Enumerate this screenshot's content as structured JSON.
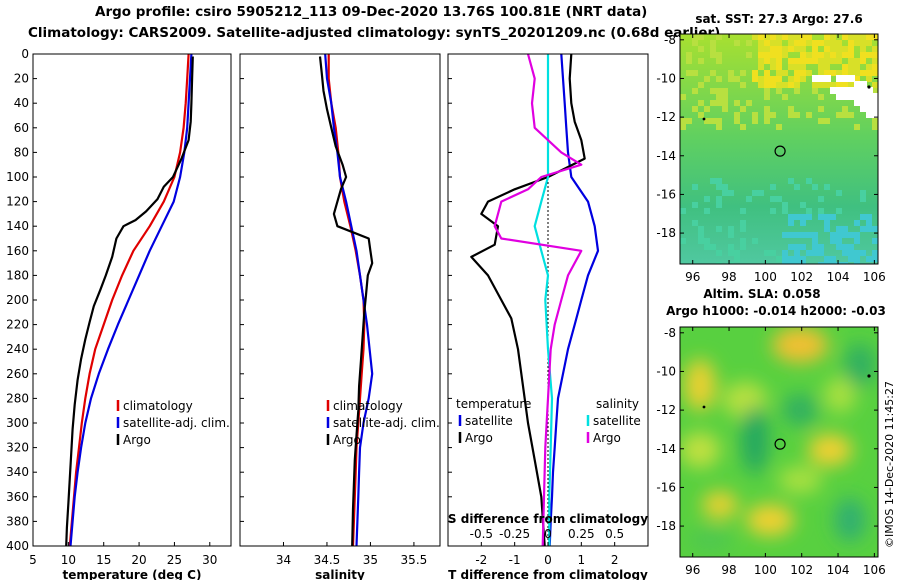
{
  "header": {
    "line1": "Argo profile: csiro 5905212_113 09-Dec-2020 13.76S 100.81E (NRT data)",
    "line2": "Climatology: CARS2009. Satellite-adjusted climatology: synTS_20201209.nc (0.68d earlier)"
  },
  "chart_data": [
    {
      "id": "temperature",
      "type": "line",
      "xlabel": "temperature (deg C)",
      "ylabel": "",
      "xlim": [
        5,
        33
      ],
      "ylim": [
        400,
        0
      ],
      "xticks": [
        "5",
        "10",
        "15",
        "20",
        "25",
        "30"
      ],
      "xtick_values": [
        5,
        10,
        15,
        20,
        25,
        30
      ],
      "yticks": [
        "0",
        "20",
        "40",
        "60",
        "80",
        "100",
        "120",
        "140",
        "160",
        "180",
        "200",
        "220",
        "240",
        "260",
        "280",
        "300",
        "320",
        "340",
        "360",
        "380",
        "400"
      ],
      "legend": [
        "climatology",
        "satellite-adj. clim.",
        "Argo"
      ],
      "series": [
        {
          "name": "climatology",
          "color": "#e00000",
          "points": [
            [
              27.0,
              0
            ],
            [
              26.8,
              20
            ],
            [
              26.6,
              40
            ],
            [
              26.3,
              60
            ],
            [
              25.8,
              80
            ],
            [
              25.0,
              100
            ],
            [
              23.5,
              120
            ],
            [
              21.5,
              140
            ],
            [
              19.2,
              160
            ],
            [
              17.6,
              180
            ],
            [
              16.2,
              200
            ],
            [
              15.0,
              220
            ],
            [
              13.8,
              240
            ],
            [
              13.0,
              260
            ],
            [
              12.4,
              280
            ],
            [
              11.9,
              300
            ],
            [
              11.5,
              320
            ],
            [
              11.1,
              340
            ],
            [
              10.8,
              360
            ],
            [
              10.5,
              380
            ],
            [
              10.2,
              400
            ]
          ]
        },
        {
          "name": "satellite-adj. clim.",
          "color": "#0000e0",
          "points": [
            [
              27.4,
              0
            ],
            [
              27.2,
              20
            ],
            [
              27.0,
              40
            ],
            [
              26.8,
              60
            ],
            [
              26.4,
              80
            ],
            [
              25.8,
              100
            ],
            [
              24.9,
              120
            ],
            [
              23.2,
              140
            ],
            [
              21.5,
              160
            ],
            [
              20.0,
              180
            ],
            [
              18.5,
              200
            ],
            [
              17.0,
              220
            ],
            [
              15.6,
              240
            ],
            [
              14.3,
              260
            ],
            [
              13.2,
              280
            ],
            [
              12.4,
              300
            ],
            [
              11.8,
              320
            ],
            [
              11.3,
              340
            ],
            [
              10.9,
              360
            ],
            [
              10.6,
              380
            ],
            [
              10.3,
              400
            ]
          ]
        },
        {
          "name": "Argo",
          "color": "#000000",
          "points": [
            [
              27.6,
              2
            ],
            [
              27.5,
              20
            ],
            [
              27.4,
              40
            ],
            [
              27.3,
              55
            ],
            [
              27.0,
              70
            ],
            [
              26.0,
              85
            ],
            [
              24.8,
              100
            ],
            [
              23.5,
              108
            ],
            [
              22.6,
              118
            ],
            [
              21.0,
              128
            ],
            [
              19.5,
              135
            ],
            [
              17.8,
              140
            ],
            [
              16.8,
              150
            ],
            [
              16.2,
              165
            ],
            [
              15.3,
              180
            ],
            [
              14.5,
              192
            ],
            [
              13.6,
              205
            ],
            [
              13.0,
              218
            ],
            [
              12.4,
              232
            ],
            [
              11.8,
              248
            ],
            [
              11.3,
              265
            ],
            [
              10.9,
              285
            ],
            [
              10.6,
              305
            ],
            [
              10.4,
              325
            ],
            [
              10.2,
              345
            ],
            [
              10.0,
              365
            ],
            [
              9.8,
              385
            ],
            [
              9.7,
              400
            ]
          ]
        }
      ]
    },
    {
      "id": "salinity",
      "type": "line",
      "xlabel": "salinity",
      "ylabel": "",
      "xlim": [
        33.5,
        35.8
      ],
      "ylim": [
        400,
        0
      ],
      "xticks": [
        "34",
        "34.5",
        "35",
        "35.5"
      ],
      "xtick_values": [
        34,
        34.5,
        35,
        35.5
      ],
      "legend": [
        "climatology",
        "satellite-adj. clim.",
        "Argo"
      ],
      "series": [
        {
          "name": "climatology",
          "color": "#e00000",
          "points": [
            [
              34.52,
              0
            ],
            [
              34.52,
              20
            ],
            [
              34.55,
              40
            ],
            [
              34.6,
              60
            ],
            [
              34.63,
              80
            ],
            [
              34.65,
              100
            ],
            [
              34.7,
              120
            ],
            [
              34.77,
              140
            ],
            [
              34.83,
              160
            ],
            [
              34.88,
              180
            ],
            [
              34.92,
              200
            ],
            [
              34.93,
              220
            ],
            [
              34.92,
              240
            ],
            [
              34.9,
              260
            ],
            [
              34.88,
              280
            ],
            [
              34.86,
              300
            ],
            [
              34.84,
              320
            ],
            [
              34.83,
              340
            ],
            [
              34.82,
              360
            ],
            [
              34.81,
              380
            ],
            [
              34.8,
              400
            ]
          ]
        },
        {
          "name": "satellite-adj. clim.",
          "color": "#0000e0",
          "points": [
            [
              34.48,
              0
            ],
            [
              34.5,
              20
            ],
            [
              34.55,
              40
            ],
            [
              34.58,
              60
            ],
            [
              34.62,
              80
            ],
            [
              34.65,
              100
            ],
            [
              34.72,
              120
            ],
            [
              34.78,
              140
            ],
            [
              34.84,
              160
            ],
            [
              34.88,
              180
            ],
            [
              34.92,
              200
            ],
            [
              34.96,
              220
            ],
            [
              34.99,
              240
            ],
            [
              35.02,
              260
            ],
            [
              34.98,
              280
            ],
            [
              34.92,
              300
            ],
            [
              34.88,
              320
            ],
            [
              34.87,
              340
            ],
            [
              34.86,
              360
            ],
            [
              34.85,
              380
            ],
            [
              34.84,
              400
            ]
          ]
        },
        {
          "name": "Argo",
          "color": "#000000",
          "points": [
            [
              34.42,
              2
            ],
            [
              34.44,
              15
            ],
            [
              34.46,
              30
            ],
            [
              34.5,
              45
            ],
            [
              34.55,
              60
            ],
            [
              34.6,
              75
            ],
            [
              34.68,
              90
            ],
            [
              34.72,
              100
            ],
            [
              34.66,
              110
            ],
            [
              34.62,
              120
            ],
            [
              34.58,
              130
            ],
            [
              34.62,
              140
            ],
            [
              34.8,
              145
            ],
            [
              34.98,
              150
            ],
            [
              35.0,
              160
            ],
            [
              35.02,
              170
            ],
            [
              34.97,
              180
            ],
            [
              34.95,
              195
            ],
            [
              34.93,
              210
            ],
            [
              34.91,
              230
            ],
            [
              34.89,
              250
            ],
            [
              34.87,
              270
            ],
            [
              34.86,
              290
            ],
            [
              34.84,
              310
            ],
            [
              34.82,
              330
            ],
            [
              34.81,
              350
            ],
            [
              34.8,
              370
            ],
            [
              34.79,
              400
            ]
          ]
        }
      ]
    },
    {
      "id": "difference",
      "type": "line",
      "xlabel": "T difference from climatology",
      "ylabel": "",
      "xlim": [
        -3,
        3
      ],
      "ylim": [
        400,
        0
      ],
      "xticks": [
        "-2",
        "-1",
        "0",
        "1",
        "2"
      ],
      "xtick_values": [
        -2,
        -1,
        0,
        1,
        2
      ],
      "secondary_axis_label": "S difference from climatology",
      "secondary_ticks": [
        "-0.5",
        "-0.25",
        "0",
        "0.25",
        "0.5"
      ],
      "secondary_tick_values": [
        -0.5,
        -0.25,
        0,
        0.25,
        0.5
      ],
      "legend_left_title": "temperature",
      "legend_right_title": "salinity",
      "legend": [
        "satellite",
        "Argo",
        "satellite",
        "Argo"
      ],
      "series": [
        {
          "name": "temperature satellite",
          "color": "#0000e0",
          "points": [
            [
              0.4,
              0
            ],
            [
              0.45,
              20
            ],
            [
              0.5,
              40
            ],
            [
              0.55,
              60
            ],
            [
              0.6,
              80
            ],
            [
              0.7,
              100
            ],
            [
              1.2,
              120
            ],
            [
              1.4,
              140
            ],
            [
              1.5,
              160
            ],
            [
              1.2,
              180
            ],
            [
              1.0,
              200
            ],
            [
              0.8,
              220
            ],
            [
              0.6,
              240
            ],
            [
              0.45,
              260
            ],
            [
              0.3,
              280
            ],
            [
              0.25,
              300
            ],
            [
              0.2,
              320
            ],
            [
              0.15,
              340
            ],
            [
              0.12,
              360
            ],
            [
              0.08,
              380
            ],
            [
              0.05,
              400
            ]
          ]
        },
        {
          "name": "temperature Argo",
          "color": "#000000",
          "points": [
            [
              0.7,
              0
            ],
            [
              0.65,
              20
            ],
            [
              0.7,
              40
            ],
            [
              0.8,
              55
            ],
            [
              1.0,
              70
            ],
            [
              1.1,
              85
            ],
            [
              0.0,
              100
            ],
            [
              -1.0,
              110
            ],
            [
              -1.8,
              120
            ],
            [
              -2.0,
              130
            ],
            [
              -1.5,
              140
            ],
            [
              -1.6,
              155
            ],
            [
              -2.3,
              165
            ],
            [
              -1.8,
              180
            ],
            [
              -1.5,
              195
            ],
            [
              -1.1,
              215
            ],
            [
              -0.9,
              240
            ],
            [
              -0.75,
              270
            ],
            [
              -0.6,
              300
            ],
            [
              -0.4,
              330
            ],
            [
              -0.2,
              360
            ],
            [
              -0.1,
              400
            ]
          ]
        },
        {
          "name": "salinity satellite",
          "color": "#00e0e0",
          "points": [
            [
              0.0,
              0
            ],
            [
              0.0,
              40
            ],
            [
              0.0,
              80
            ],
            [
              0.0,
              100
            ],
            [
              -0.05,
              120
            ],
            [
              -0.1,
              140
            ],
            [
              -0.05,
              160
            ],
            [
              0.0,
              180
            ],
            [
              -0.02,
              200
            ],
            [
              0.0,
              240
            ],
            [
              0.03,
              280
            ],
            [
              0.02,
              320
            ],
            [
              0.01,
              360
            ],
            [
              0.01,
              400
            ]
          ]
        },
        {
          "name": "salinity Argo",
          "color": "#e000e0",
          "points": [
            [
              -0.15,
              0
            ],
            [
              -0.1,
              20
            ],
            [
              -0.12,
              40
            ],
            [
              -0.1,
              60
            ],
            [
              0.1,
              80
            ],
            [
              0.25,
              90
            ],
            [
              -0.05,
              100
            ],
            [
              -0.15,
              110
            ],
            [
              -0.35,
              120
            ],
            [
              -0.4,
              140
            ],
            [
              -0.35,
              150
            ],
            [
              0.25,
              160
            ],
            [
              0.15,
              180
            ],
            [
              0.1,
              200
            ],
            [
              0.05,
              220
            ],
            [
              0.02,
              240
            ],
            [
              0.0,
              280
            ],
            [
              -0.02,
              320
            ],
            [
              -0.03,
              360
            ],
            [
              -0.04,
              400
            ]
          ]
        }
      ]
    },
    {
      "id": "sst-map",
      "type": "heatmap",
      "title": "sat. SST: 27.3 Argo: 27.6",
      "xticks": [
        "96",
        "98",
        "100",
        "102",
        "104",
        "106"
      ],
      "xtick_values": [
        96,
        98,
        100,
        102,
        104,
        106
      ],
      "yticks": [
        "-8",
        "-10",
        "-12",
        "-14",
        "-16",
        "-18"
      ],
      "ytick_values": [
        -8,
        -10,
        -12,
        -14,
        -16,
        -18
      ],
      "xlim": [
        95.3,
        106.2
      ],
      "ylim": [
        -19.6,
        -7.7
      ],
      "argo_position": [
        100.81,
        -13.76
      ]
    },
    {
      "id": "sla-map",
      "type": "heatmap",
      "title": "Altim. SLA: 0.058",
      "subtitle": "Argo h1000: -0.014 h2000: -0.03",
      "xticks": [
        "96",
        "98",
        "100",
        "102",
        "104",
        "106"
      ],
      "xtick_values": [
        96,
        98,
        100,
        102,
        104,
        106
      ],
      "yticks": [
        "-8",
        "-10",
        "-12",
        "-14",
        "-16",
        "-18"
      ],
      "ytick_values": [
        -8,
        -10,
        -12,
        -14,
        -16,
        -18
      ],
      "xlim": [
        95.3,
        106.2
      ],
      "ylim": [
        -19.6,
        -7.7
      ],
      "argo_position": [
        100.81,
        -13.76
      ]
    }
  ],
  "credit": "©IMOS 14-Dec-2020 11:45:27",
  "colors": {
    "red": "#e00000",
    "blue": "#0000e0",
    "cyan": "#00e0e0",
    "magenta": "#e000e0",
    "black": "#000000"
  }
}
